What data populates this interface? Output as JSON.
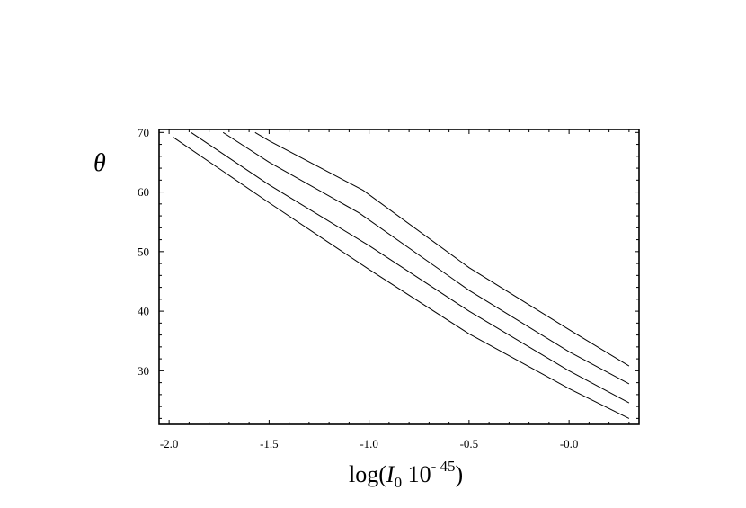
{
  "chart_data": {
    "type": "line",
    "title": "",
    "ylabel": "θ",
    "xlabel": {
      "prefix": "log(",
      "var": "I",
      "sub": "0",
      "mid": " 10",
      "sup": "- 45",
      "suffix": ")"
    },
    "xlim": [
      -2.05,
      0.35
    ],
    "ylim": [
      21,
      70.5
    ],
    "xticks": [
      {
        "v": -2.0,
        "label": "-2.0"
      },
      {
        "v": -1.5,
        "label": "-1.5"
      },
      {
        "v": -1.0,
        "label": "-1.0"
      },
      {
        "v": -0.5,
        "label": "-0.5"
      },
      {
        "v": 0.0,
        "label": "-0.0"
      }
    ],
    "yticks": [
      {
        "v": 30,
        "label": "30"
      },
      {
        "v": 40,
        "label": "40"
      },
      {
        "v": 50,
        "label": "50"
      },
      {
        "v": 60,
        "label": "60"
      },
      {
        "v": 70,
        "label": "70"
      }
    ],
    "grid": false,
    "series": [
      {
        "x": [
          -1.98,
          -1.5,
          -1.0,
          -0.5,
          0.0,
          0.3
        ],
        "y": [
          69.2,
          58.2,
          47.0,
          36.2,
          27.0,
          22.0
        ]
      },
      {
        "x": [
          -1.89,
          -1.5,
          -1.0,
          -0.5,
          0.0,
          0.3
        ],
        "y": [
          70.0,
          61.2,
          51.0,
          40.0,
          30.0,
          24.6
        ]
      },
      {
        "x": [
          -1.73,
          -1.5,
          -1.05,
          -0.5,
          0.0,
          0.3
        ],
        "y": [
          70.0,
          65.0,
          56.5,
          43.5,
          33.2,
          27.8
        ]
      },
      {
        "x": [
          -1.57,
          -1.5,
          -1.03,
          -0.5,
          0.0,
          0.3
        ],
        "y": [
          70.0,
          68.6,
          60.3,
          47.3,
          36.9,
          30.8
        ]
      }
    ]
  }
}
